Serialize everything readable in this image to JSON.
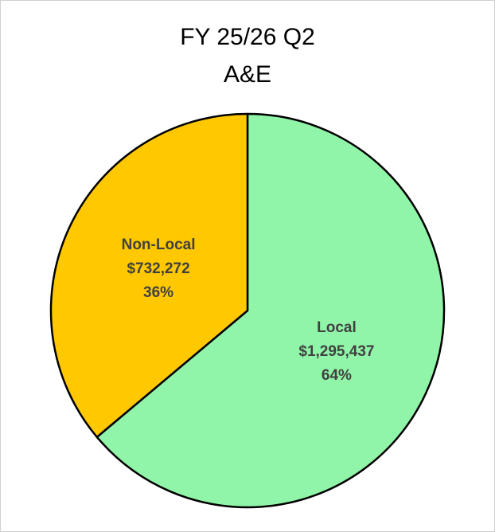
{
  "chart_data": {
    "type": "pie",
    "title": [
      "FY 25/26 Q2",
      "A&E"
    ],
    "categories": [
      "Local",
      "Non-Local"
    ],
    "values": [
      1295437,
      732272
    ],
    "value_labels": [
      "$1,295,437",
      "$732,272"
    ],
    "percent_labels": [
      "64%",
      "36%"
    ],
    "colors": [
      "#90f5a8",
      "#ffc800"
    ]
  }
}
